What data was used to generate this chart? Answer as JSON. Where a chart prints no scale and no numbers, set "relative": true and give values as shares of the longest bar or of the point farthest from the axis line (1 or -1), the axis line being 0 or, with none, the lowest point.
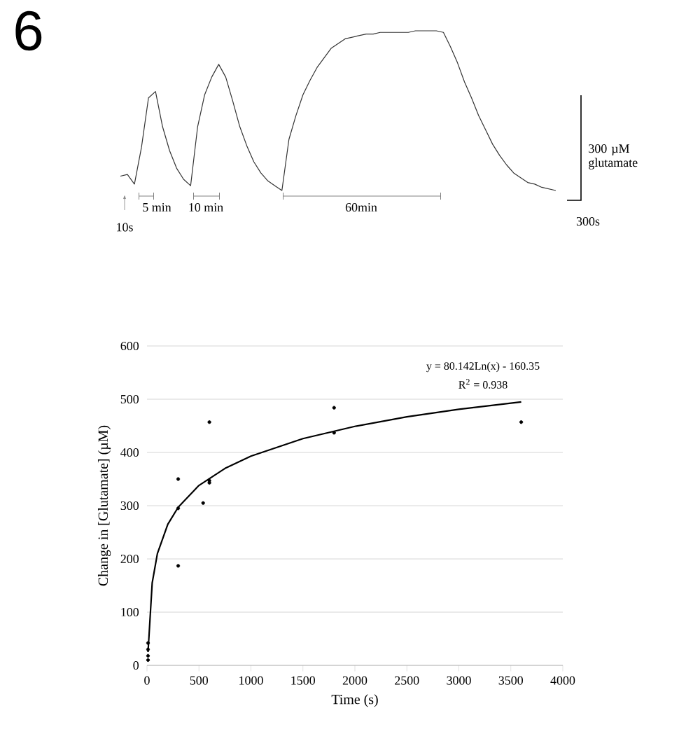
{
  "chart_data": [
    {
      "type": "line",
      "relative": true,
      "color": "#333333",
      "annotations": [
        "6",
        "10s",
        "5 min",
        "10 min",
        "60min",
        "300 µM glutamate",
        "300s"
      ],
      "categories": [
        null,
        null,
        null,
        null,
        null,
        null,
        null,
        null,
        null,
        null,
        null,
        null,
        null,
        null,
        null,
        null,
        null,
        null,
        null,
        null,
        null,
        null,
        null,
        null,
        null,
        null,
        null,
        null,
        null,
        null,
        null,
        null,
        null,
        null,
        null,
        null,
        null,
        null,
        null,
        null,
        null,
        null,
        null,
        null,
        null,
        null,
        null,
        null,
        null,
        null,
        null,
        null,
        null,
        null,
        null,
        null,
        null,
        null,
        null,
        null,
        null,
        null,
        null
      ],
      "values": [
        0.09,
        0.1,
        0.04,
        0.27,
        0.58,
        0.62,
        0.4,
        0.25,
        0.14,
        0.07,
        0.03,
        0.4,
        0.6,
        0.71,
        0.79,
        0.71,
        0.56,
        0.4,
        0.28,
        0.18,
        0.11,
        0.06,
        0.03,
        0,
        0.32,
        0.47,
        0.6,
        0.69,
        0.77,
        0.83,
        0.89,
        0.92,
        0.95,
        0.96,
        0.97,
        0.98,
        0.98,
        0.99,
        0.99,
        0.99,
        0.99,
        0.99,
        1,
        1,
        1,
        1,
        0.99,
        0.9,
        0.8,
        0.68,
        0.58,
        0.47,
        0.38,
        0.29,
        0.22,
        0.16,
        0.11,
        0.08,
        0.05,
        0.04,
        0.02,
        0.01,
        0
      ]
    },
    {
      "type": "scatter",
      "xlabel": "Time (s)",
      "ylabel": "Change in [Glutamate] (µM)",
      "xlim": [
        0,
        4000
      ],
      "xticks": [
        0,
        500,
        1000,
        1500,
        2000,
        2500,
        3000,
        3500,
        4000
      ],
      "ylim": [
        0,
        600
      ],
      "yticks": [
        0,
        100,
        200,
        300,
        400,
        500,
        600
      ],
      "grid": "y",
      "marker": "circle",
      "annotations": [
        "y = 80.142Ln(x) - 160.35",
        "R$^{2}$ = 0.938"
      ],
      "series": [
        {
          "type": "scatter",
          "color": "#000000",
          "x": [
            10,
            10,
            10,
            10,
            300,
            300,
            300,
            540,
            600,
            600,
            600,
            1800,
            1800,
            3600
          ],
          "values": [
            42,
            30,
            18,
            10,
            350,
            295,
            187,
            305,
            457,
            347,
            343,
            484,
            437,
            457
          ]
        },
        {
          "type": "line",
          "color": "#000000",
          "marker": "none",
          "x": [
            10,
            50,
            100,
            200,
            300,
            500,
            750,
            1000,
            1500,
            2000,
            2500,
            3000,
            3600
          ],
          "values": [
            25,
            155,
            210,
            265,
            297,
            338,
            370,
            393,
            426,
            449,
            467,
            481,
            495
          ]
        }
      ]
    }
  ]
}
